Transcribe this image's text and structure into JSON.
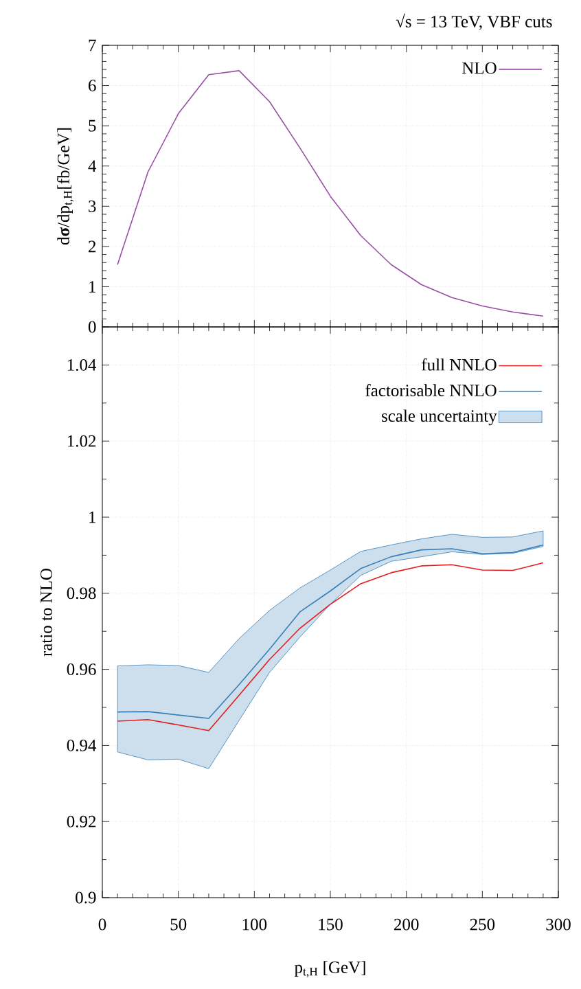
{
  "chart_data": [
    {
      "type": "line",
      "title": "√s = 13 TeV, VBF cuts",
      "ylabel": "d**σ**/dp$_{t,H}$[fb/GeV]",
      "x": [
        10,
        30,
        50,
        70,
        90,
        110,
        130,
        150,
        170,
        190,
        210,
        230,
        250,
        270,
        290
      ],
      "series": [
        {
          "name": "NLO",
          "color": "#9b4ea8",
          "values": [
            1.55,
            3.85,
            5.3,
            6.27,
            6.37,
            5.6,
            4.45,
            3.25,
            2.27,
            1.55,
            1.05,
            0.73,
            0.52,
            0.37,
            0.27
          ]
        }
      ],
      "xlim": [
        0,
        300
      ],
      "xticks": [
        0,
        50,
        100,
        150,
        200,
        250,
        300
      ],
      "ylim": [
        0,
        7
      ],
      "yticks": [
        0,
        1,
        2,
        3,
        4,
        5,
        6,
        7
      ],
      "tick_labels": "y",
      "grid": true,
      "legend": "top right"
    },
    {
      "type": "line",
      "xlabel": "p$_{t,H}$ [GeV]",
      "ylabel": "ratio to NLO",
      "x": [
        10,
        30,
        50,
        70,
        90,
        110,
        130,
        150,
        170,
        190,
        210,
        230,
        250,
        270,
        290
      ],
      "series": [
        {
          "name": "full NNLO",
          "color": "#e41a1c",
          "values": [
            0.9464,
            0.9468,
            0.9454,
            0.9439,
            0.9532,
            0.9626,
            0.9708,
            0.9771,
            0.9825,
            0.9854,
            0.9872,
            0.9875,
            0.9861,
            0.986,
            0.988
          ]
        },
        {
          "name": "factorisable NNLO",
          "color": "#377eb8",
          "values": [
            0.9488,
            0.9489,
            0.948,
            0.9471,
            0.956,
            0.9653,
            0.9751,
            0.9806,
            0.9865,
            0.9896,
            0.9914,
            0.9917,
            0.9904,
            0.9907,
            0.9927
          ]
        },
        {
          "name": "scale uncertainty",
          "type": "area",
          "color": "#377eb8",
          "values": [
            null,
            null,
            null,
            null,
            null,
            null,
            null,
            null,
            null,
            null,
            null,
            null,
            null,
            null,
            null
          ],
          "lower": [
            0.9383,
            0.9362,
            0.9364,
            0.9339,
            0.9466,
            0.9592,
            0.9685,
            0.9771,
            0.9847,
            0.9884,
            0.9896,
            0.9909,
            0.9902,
            0.9905,
            0.9923
          ],
          "upper": [
            0.9609,
            0.9612,
            0.961,
            0.9592,
            0.9681,
            0.9755,
            0.9814,
            0.9861,
            0.991,
            0.9927,
            0.9943,
            0.9955,
            0.9947,
            0.9948,
            0.9964
          ]
        }
      ],
      "xlim": [
        0,
        300
      ],
      "xticks": [
        0,
        50,
        100,
        150,
        200,
        250,
        300
      ],
      "ylim": [
        0.9,
        1.05
      ],
      "yticks": [
        0.9,
        0.92,
        0.94,
        0.96,
        0.98,
        1,
        1.02,
        1.04
      ],
      "grid": true,
      "legend": "top right"
    }
  ]
}
